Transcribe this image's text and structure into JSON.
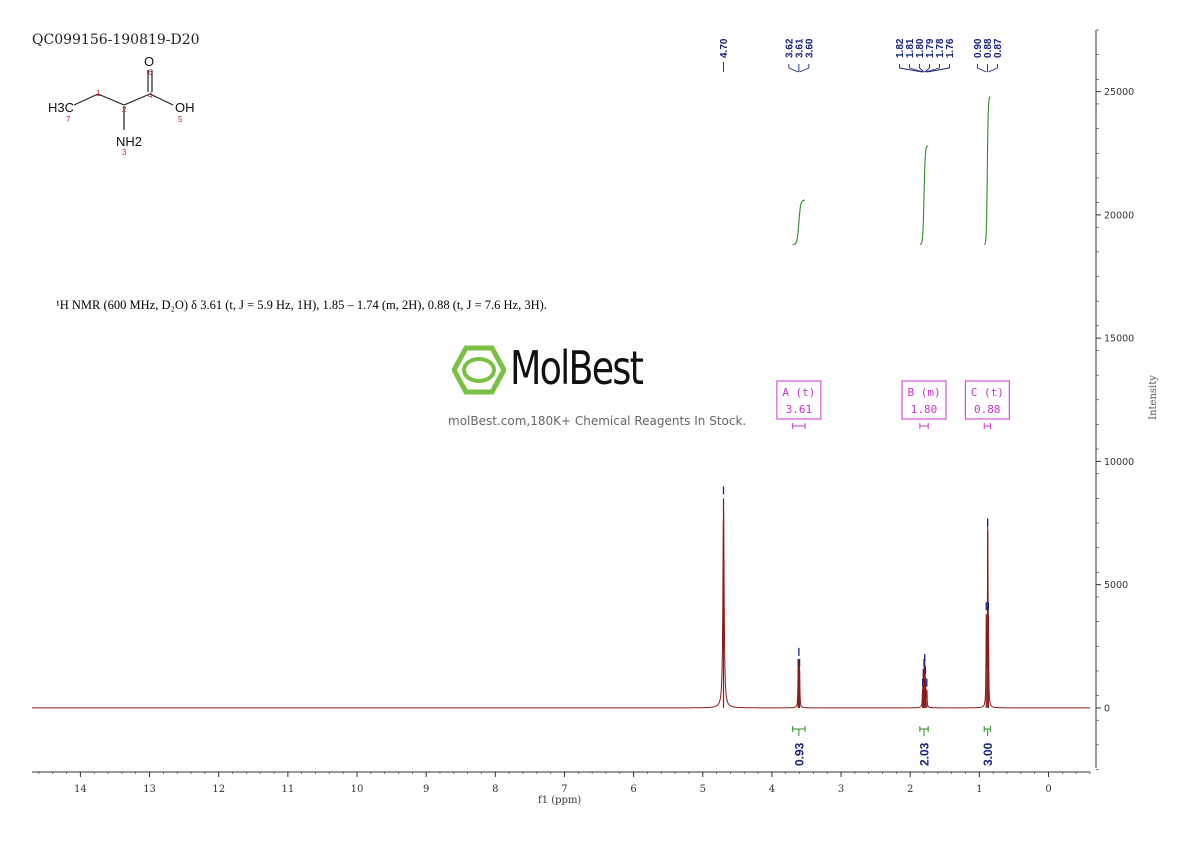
{
  "sample_id": "QC099156-190819-D20",
  "nmr_description": "¹H NMR (600 MHz, D₂O) δ 3.61 (t, J = 5.9 Hz, 1H), 1.85 – 1.74 (m, 2H), 0.88 (t, J = 7.6 Hz, 3H).",
  "watermark": {
    "brand": "MolBest",
    "tagline": "molBest.com,180K+ Chemical Reagents In Stock.",
    "brand_color": "#7ac143"
  },
  "structure": {
    "atoms": [
      "H3C",
      "NH2",
      "O",
      "OH"
    ],
    "atom_numbers": [
      "1",
      "2",
      "3",
      "4",
      "5",
      "6",
      "7"
    ]
  },
  "colors": {
    "spectrum": "#8b1a1a",
    "integral": "#2e8b2e",
    "peak_label": "#1a237e",
    "multiplet_box": "#cc33cc"
  },
  "chart_data": {
    "type": "line",
    "title": "QC099156-190819-D20",
    "xlabel": "f1 (ppm)",
    "ylabel": "Intensity",
    "xlim": [
      14.7,
      -0.6
    ],
    "ylim": [
      -2600,
      27500
    ],
    "x_ticks": [
      14,
      13,
      12,
      11,
      10,
      9,
      8,
      7,
      6,
      5,
      4,
      3,
      2,
      1,
      0
    ],
    "y_ticks": [
      0,
      5000,
      10000,
      15000,
      20000,
      25000
    ],
    "peaks": [
      {
        "ppm": 4.7,
        "intensity": 8500,
        "width": 0.01
      },
      {
        "ppm": 3.62,
        "intensity": 1500,
        "width": 0.004
      },
      {
        "ppm": 3.61,
        "intensity": 1950,
        "width": 0.004
      },
      {
        "ppm": 3.6,
        "intensity": 1500,
        "width": 0.004
      },
      {
        "ppm": 1.82,
        "intensity": 700,
        "width": 0.004
      },
      {
        "ppm": 1.81,
        "intensity": 1100,
        "width": 0.004
      },
      {
        "ppm": 1.8,
        "intensity": 1500,
        "width": 0.004
      },
      {
        "ppm": 1.79,
        "intensity": 1700,
        "width": 0.004
      },
      {
        "ppm": 1.78,
        "intensity": 1200,
        "width": 0.004
      },
      {
        "ppm": 1.76,
        "intensity": 700,
        "width": 0.004
      },
      {
        "ppm": 0.9,
        "intensity": 3800,
        "width": 0.004
      },
      {
        "ppm": 0.88,
        "intensity": 7200,
        "width": 0.004
      },
      {
        "ppm": 0.87,
        "intensity": 3800,
        "width": 0.004
      }
    ],
    "peak_labels": [
      {
        "group": [
          4.7
        ],
        "labels": [
          "4.70"
        ]
      },
      {
        "group": [
          3.62,
          3.61,
          3.6
        ],
        "labels": [
          "3.62",
          "3.61",
          "3.60"
        ]
      },
      {
        "group": [
          1.82,
          1.81,
          1.8,
          1.79,
          1.78,
          1.76
        ],
        "labels": [
          "1.82",
          "1.81",
          "1.80",
          "1.79",
          "1.78",
          "1.76"
        ]
      },
      {
        "group": [
          0.9,
          0.88,
          0.87
        ],
        "labels": [
          "0.90",
          "0.88",
          "0.87"
        ]
      }
    ],
    "integrals": [
      {
        "from": 3.7,
        "to": 3.52,
        "center": 3.61,
        "value": "0.93",
        "y_start": 18800,
        "y_end": 20600
      },
      {
        "from": 1.86,
        "to": 1.74,
        "center": 1.8,
        "value": "2.03",
        "y_start": 18800,
        "y_end": 22800
      },
      {
        "from": 0.93,
        "to": 0.84,
        "center": 0.88,
        "value": "3.00",
        "y_start": 18800,
        "y_end": 24800
      }
    ],
    "multiplets": [
      {
        "name": "A (t)",
        "shift": "3.61",
        "from": 3.7,
        "to": 3.52
      },
      {
        "name": "B (m)",
        "shift": "1.80",
        "from": 1.86,
        "to": 1.74
      },
      {
        "name": "C (t)",
        "shift": "0.88",
        "from": 0.93,
        "to": 0.84
      }
    ]
  }
}
